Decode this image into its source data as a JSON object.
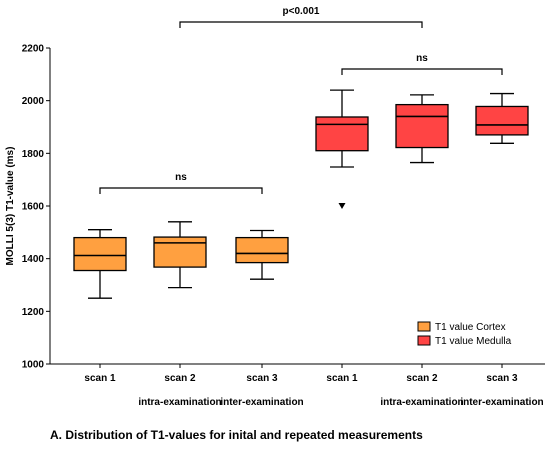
{
  "chart_data": {
    "type": "box",
    "ylabel": "MOLLI 5(3) T1-value (ms)",
    "ylim": [
      1000,
      2200
    ],
    "yticks": [
      1000,
      1200,
      1400,
      1600,
      1800,
      2000,
      2200
    ],
    "categories": [
      {
        "label": "scan 1",
        "sublabel": ""
      },
      {
        "label": "scan 2",
        "sublabel": "intra-examination"
      },
      {
        "label": "scan 3",
        "sublabel": "inter-examination"
      },
      {
        "label": "scan 1",
        "sublabel": ""
      },
      {
        "label": "scan 2",
        "sublabel": "intra-examination"
      },
      {
        "label": "scan 3",
        "sublabel": "inter-examination"
      }
    ],
    "series": [
      {
        "name": "T1 value Cortex",
        "color": "#ffa040",
        "boxes": [
          {
            "category": 0,
            "min": 1250,
            "q1": 1355,
            "median": 1412,
            "q3": 1480,
            "max": 1510,
            "outliers": []
          },
          {
            "category": 1,
            "min": 1290,
            "q1": 1368,
            "median": 1460,
            "q3": 1482,
            "max": 1540,
            "outliers": []
          },
          {
            "category": 2,
            "min": 1322,
            "q1": 1385,
            "median": 1420,
            "q3": 1480,
            "max": 1507,
            "outliers": []
          }
        ]
      },
      {
        "name": "T1 value Medulla",
        "color": "#ff4444",
        "boxes": [
          {
            "category": 3,
            "min": 1748,
            "q1": 1810,
            "median": 1910,
            "q3": 1938,
            "max": 2040,
            "outliers": [
              1600
            ]
          },
          {
            "category": 4,
            "min": 1765,
            "q1": 1822,
            "median": 1940,
            "q3": 1985,
            "max": 2022,
            "outliers": []
          },
          {
            "category": 5,
            "min": 1838,
            "q1": 1870,
            "median": 1908,
            "q3": 1978,
            "max": 2027,
            "outliers": []
          }
        ]
      }
    ],
    "annotations": [
      {
        "text": "p<0.001",
        "from": 1,
        "to": 4,
        "level": "top"
      },
      {
        "text": "ns",
        "from": 3,
        "to": 5,
        "level": "upper"
      },
      {
        "text": "ns",
        "from": 0,
        "to": 2,
        "level": "lower"
      }
    ],
    "legend_position": "bottom-right"
  },
  "caption": "A. Distribution of T1-values for inital and repeated measurements"
}
